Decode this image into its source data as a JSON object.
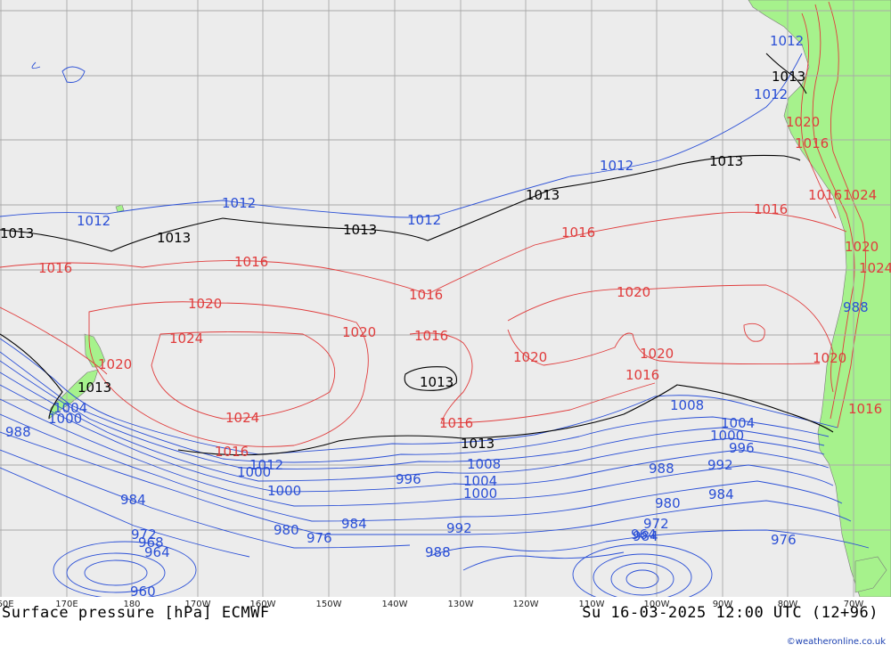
{
  "title": "Surface pressure [hPa] ECMWF",
  "datetime": "Su 16-03-2025 12:00 UTC (12+96)",
  "credit": "©weatheronline.co.uk",
  "colors": {
    "ocean": "#ececec",
    "land": "#a6f28c",
    "grid": "#a9a9a9",
    "high_isobar": "#e03c3c",
    "low_isobar": "#2a4fd6",
    "standard_isobar": "#000000"
  },
  "longitude_labels": [
    "60E",
    "170E",
    "180",
    "170W",
    "160W",
    "150W",
    "140W",
    "130W",
    "120W",
    "110W",
    "100W",
    "90W",
    "80W",
    "70W"
  ],
  "isobar_labels": {
    "black": [
      "1013",
      "1013",
      "1013",
      "1013",
      "1013",
      "1013",
      "1013",
      "1013",
      "1013"
    ],
    "red": [
      "1016",
      "1016",
      "1016",
      "1016",
      "1016",
      "1016",
      "1016",
      "1016",
      "1016",
      "1016",
      "1016",
      "1020",
      "1020",
      "1020",
      "1020",
      "1020",
      "1020",
      "1020",
      "1020",
      "1020",
      "1024",
      "1024",
      "1024",
      "1024",
      "1016"
    ],
    "blue": [
      "1012",
      "1012",
      "1012",
      "1012",
      "1012",
      "1012",
      "1012",
      "1008",
      "1008",
      "1004",
      "1004",
      "1004",
      "1000",
      "1000",
      "1000",
      "1000",
      "1000",
      "996",
      "996",
      "992",
      "992",
      "988",
      "988",
      "988",
      "988",
      "984",
      "984",
      "984",
      "984",
      "980",
      "980",
      "976",
      "976",
      "972",
      "972",
      "968",
      "964",
      "964",
      "960"
    ]
  }
}
